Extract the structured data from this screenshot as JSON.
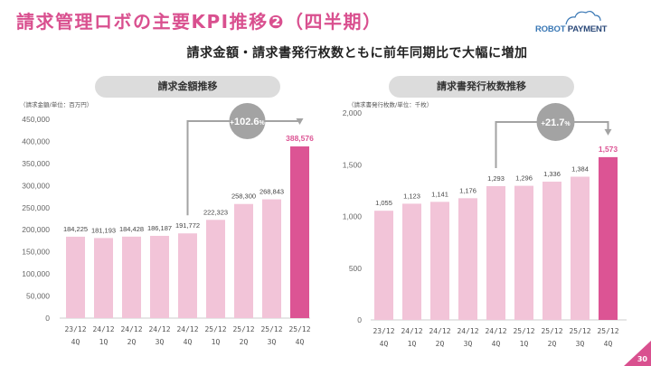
{
  "header": {
    "title": "請求管理ロボの主要KPI推移❷（四半期）",
    "logo_text_a": "ROBOT",
    "logo_text_b": "PAYMENT",
    "subtitle": "請求金額・請求書発行枚数ともに前年同期比で大幅に増加"
  },
  "colors": {
    "accent": "#d9508f",
    "bar_normal": "#f2c4d8",
    "bar_highlight": "#dc5494",
    "pill_bg": "#dcdcdc",
    "growth_circle": "#a3a3a3"
  },
  "page_number": "30",
  "chart_data": [
    {
      "type": "bar",
      "title": "請求金額推移",
      "unit_note": "（請求金額/単位：百万円）",
      "xlabel": "",
      "ylabel": "請求金額（百万円）",
      "categories": [
        "23/12 4Q",
        "24/12 1Q",
        "24/12 2Q",
        "24/12 3Q",
        "24/12 4Q",
        "25/12 1Q",
        "25/12 2Q",
        "25/12 3Q",
        "25/12 4Q"
      ],
      "category_lines": [
        [
          "23/12",
          "4Q"
        ],
        [
          "24/12",
          "1Q"
        ],
        [
          "24/12",
          "2Q"
        ],
        [
          "24/12",
          "3Q"
        ],
        [
          "24/12",
          "4Q"
        ],
        [
          "25/12",
          "1Q"
        ],
        [
          "25/12",
          "2Q"
        ],
        [
          "25/12",
          "3Q"
        ],
        [
          "25/12",
          "4Q"
        ]
      ],
      "values": [
        184225,
        181193,
        184428,
        186187,
        191772,
        222323,
        258300,
        268843,
        388576
      ],
      "value_labels": [
        "184,225",
        "181,193",
        "184,428",
        "186,187",
        "191,772",
        "222,323",
        "258,300",
        "268,843",
        "388,576"
      ],
      "highlight_index": 8,
      "ylim": [
        0,
        450000
      ],
      "yticks": [
        0,
        50000,
        100000,
        150000,
        200000,
        250000,
        300000,
        350000,
        400000,
        450000
      ],
      "ytick_labels": [
        "0",
        "50,000",
        "100,000",
        "150,000",
        "200,000",
        "250,000",
        "300,000",
        "350,000",
        "400,000",
        "450,000"
      ],
      "grid": false,
      "annotation": {
        "label_prefix": "+",
        "label_value": "102.6",
        "label_suffix": "%",
        "from_index": 4,
        "to_index": 8
      }
    },
    {
      "type": "bar",
      "title": "請求書発行枚数推移",
      "unit_note": "（請求書発行枚数/単位：千枚）",
      "xlabel": "",
      "ylabel": "請求書発行枚数（千枚）",
      "categories": [
        "23/12 4Q",
        "24/12 1Q",
        "24/12 2Q",
        "24/12 3Q",
        "24/12 4Q",
        "25/12 1Q",
        "25/12 2Q",
        "25/12 3Q",
        "25/12 4Q"
      ],
      "category_lines": [
        [
          "23/12",
          "4Q"
        ],
        [
          "24/12",
          "1Q"
        ],
        [
          "24/12",
          "2Q"
        ],
        [
          "24/12",
          "3Q"
        ],
        [
          "24/12",
          "4Q"
        ],
        [
          "25/12",
          "1Q"
        ],
        [
          "25/12",
          "2Q"
        ],
        [
          "25/12",
          "3Q"
        ],
        [
          "25/12",
          "4Q"
        ]
      ],
      "values": [
        1055,
        1123,
        1141,
        1176,
        1293,
        1296,
        1336,
        1384,
        1573
      ],
      "value_labels": [
        "1,055",
        "1,123",
        "1,141",
        "1,176",
        "1,293",
        "1,296",
        "1,336",
        "1,384",
        "1,573"
      ],
      "highlight_index": 8,
      "ylim": [
        0,
        2000
      ],
      "yticks": [
        0,
        500,
        1000,
        1500,
        2000
      ],
      "ytick_labels": [
        "0",
        "500",
        "1,000",
        "1,500",
        "2,000"
      ],
      "grid": false,
      "annotation": {
        "label_prefix": "+",
        "label_value": "21.7",
        "label_suffix": "%",
        "from_index": 4,
        "to_index": 8
      }
    }
  ]
}
